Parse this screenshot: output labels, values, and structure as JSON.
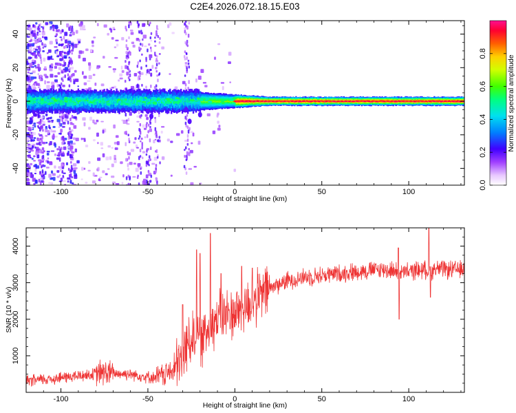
{
  "title": "C2E4.2026.072.18.15.E03",
  "chart_data": [
    {
      "type": "heatmap",
      "xlabel": "Height of straight line (km)",
      "ylabel": "Frequency (Hz)",
      "xlim": [
        -120,
        132
      ],
      "ylim": [
        -50,
        48
      ],
      "xticks": [
        -100,
        -50,
        0,
        50,
        100
      ],
      "yticks": [
        -40,
        -20,
        0,
        20,
        40
      ],
      "colorbar": {
        "label": "Normalized spectral amplitude",
        "range": [
          0,
          1
        ],
        "ticks": [
          0.0,
          0.2,
          0.4,
          0.6,
          0.8
        ],
        "tick_labels": [
          "0.0",
          "0.2",
          "0.4",
          "0.6",
          "0.8"
        ]
      },
      "description_values": {
        "band_center_hz": 0,
        "band_halfwidth_hz_low_height": 4,
        "band_halfwidth_hz_high_height": 2,
        "peak_amplitude_region_km": [
          0,
          130
        ]
      }
    },
    {
      "type": "line",
      "xlabel": "Height of straight line (km)",
      "ylabel": "SNR (10 * v/v)",
      "xlim": [
        -120,
        132
      ],
      "ylim": [
        0,
        4500
      ],
      "xticks": [
        -100,
        -50,
        0,
        50,
        100
      ],
      "yticks": [
        1000,
        2000,
        3000,
        4000
      ],
      "color": "#ee3333",
      "series": [
        {
          "name": "SNR",
          "x": [
            -120,
            -110,
            -100,
            -90,
            -80,
            -75,
            -70,
            -60,
            -50,
            -45,
            -40,
            -35,
            -30,
            -28,
            -25,
            -22,
            -20,
            -18,
            -15,
            -10,
            -5,
            0,
            5,
            10,
            15,
            20,
            30,
            40,
            50,
            60,
            70,
            80,
            90,
            95,
            100,
            105,
            110,
            113,
            115,
            120,
            125,
            132
          ],
          "values": [
            300,
            350,
            400,
            450,
            500,
            550,
            520,
            500,
            420,
            400,
            500,
            600,
            900,
            1300,
            1500,
            1600,
            1400,
            1500,
            1800,
            2000,
            2100,
            2200,
            2300,
            2450,
            2650,
            2850,
            3050,
            3150,
            3200,
            3250,
            3300,
            3350,
            3350,
            3250,
            3300,
            3350,
            3350,
            3300,
            3400,
            3350,
            3350,
            3350
          ]
        }
      ],
      "spikes": [
        {
          "x": -30,
          "value": 2400
        },
        {
          "x": -22,
          "value": 3900
        },
        {
          "x": -20,
          "value": 3800
        },
        {
          "x": -14,
          "value": 4350
        },
        {
          "x": -8,
          "value": 3250
        },
        {
          "x": 4,
          "value": 3450
        },
        {
          "x": 10,
          "value": 3400
        },
        {
          "x": 94,
          "value": 3950
        },
        {
          "x": 94.5,
          "value": 2000
        },
        {
          "x": 111.5,
          "value": 4500
        },
        {
          "x": 112.5,
          "value": 2600
        }
      ]
    }
  ]
}
